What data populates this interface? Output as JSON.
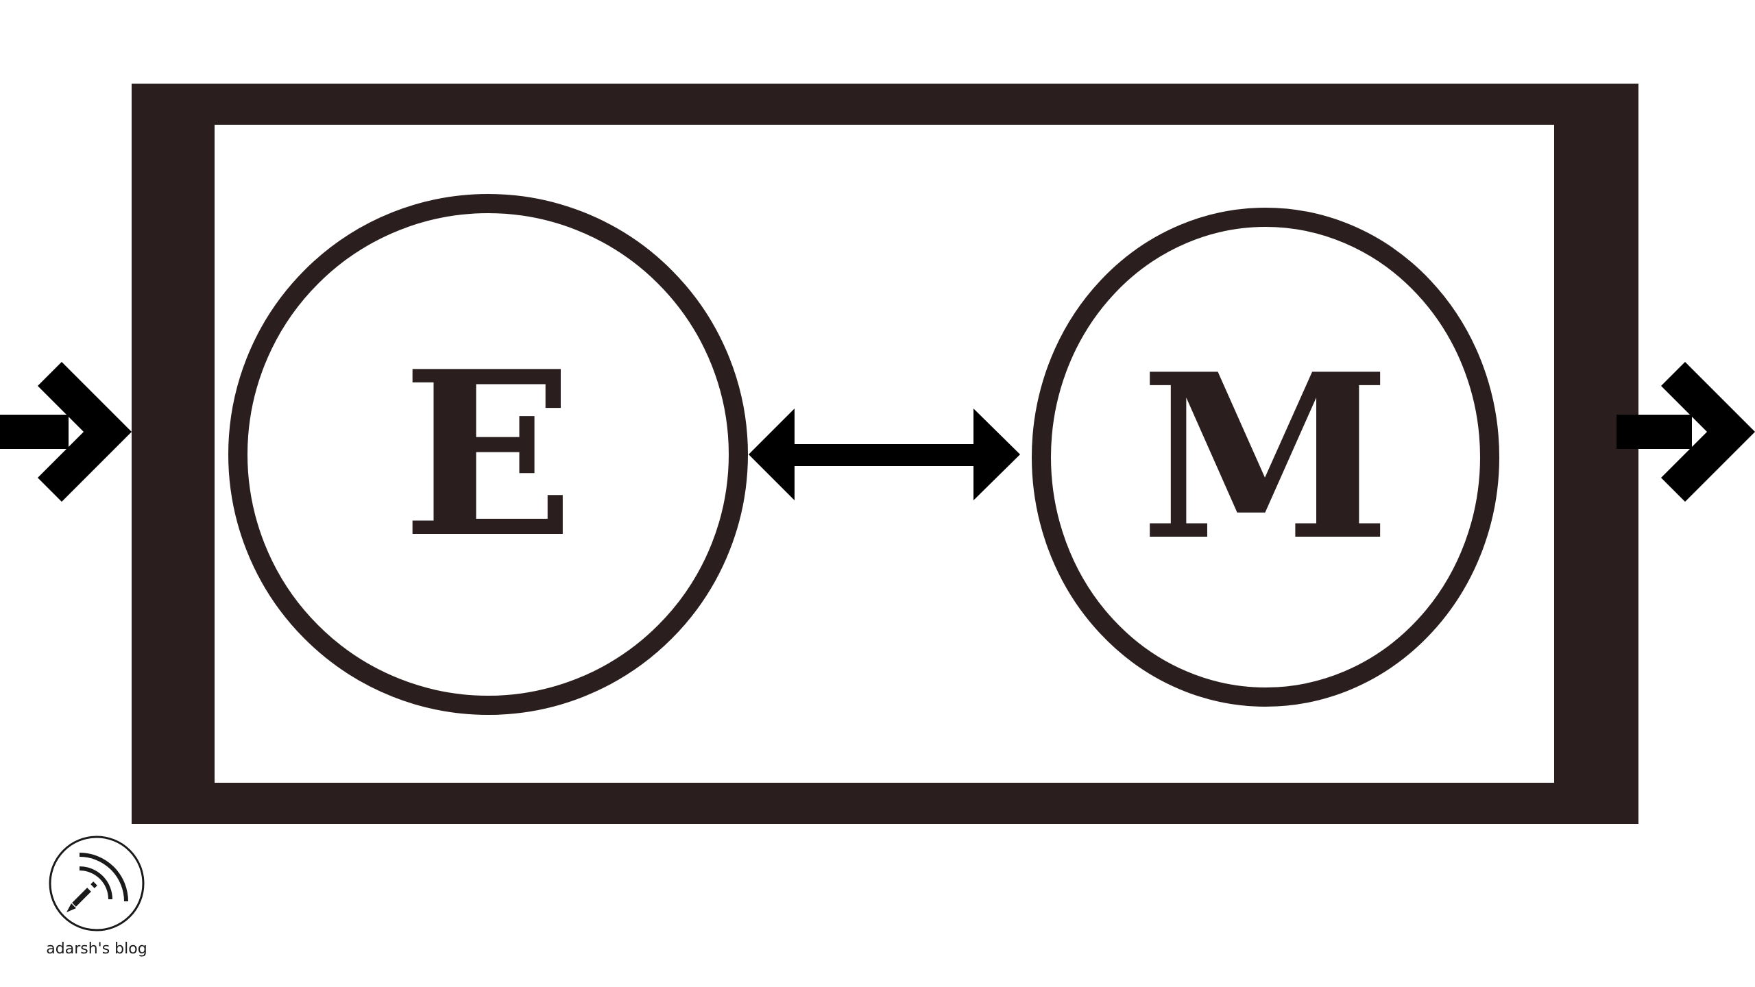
{
  "diagram": {
    "nodes": [
      {
        "id": "E",
        "label": "E"
      },
      {
        "id": "M",
        "label": "M"
      }
    ],
    "links": [
      {
        "from": "E",
        "to": "M",
        "type": "bidirectional"
      }
    ],
    "io": {
      "input": "arrow-in",
      "output": "arrow-out"
    }
  },
  "watermark": {
    "icon": "pen-signal-icon",
    "text": "adarsh's blog"
  },
  "colors": {
    "frame": "#2a1f1e",
    "arrow": "#000000",
    "background": "#ffffff"
  }
}
